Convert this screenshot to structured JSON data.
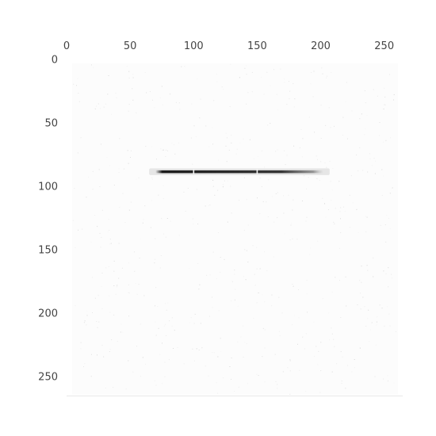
{
  "chart_data": {
    "type": "heatmap",
    "title": "",
    "xlabel": "",
    "ylabel": "",
    "x_axis_position": "top",
    "y_axis_direction": "down",
    "xlim": [
      0,
      263
    ],
    "ylim": [
      0,
      263
    ],
    "x_ticks": [
      0,
      50,
      100,
      150,
      200,
      250
    ],
    "y_ticks": [
      0,
      50,
      100,
      150,
      200,
      250
    ],
    "x_tick_labels": [
      "0",
      "50",
      "100",
      "150",
      "200",
      "250"
    ],
    "y_tick_labels": [
      "0",
      "50",
      "100",
      "150",
      "200",
      "250"
    ],
    "grid": false,
    "colormap": "grayscale (white = low, black = high)",
    "background_value": "near-zero with sparse faint noise",
    "features": [
      {
        "kind": "horizontal-streak",
        "y": 88.5,
        "x_start": 70,
        "x_end": 202,
        "thickness": 2.2,
        "peak_color": "#111111",
        "gaps_at_x": [
          100,
          150
        ]
      }
    ],
    "colors": {
      "background": "#fcfcfc",
      "streak": "#111111",
      "tick_text": "#444444"
    }
  }
}
